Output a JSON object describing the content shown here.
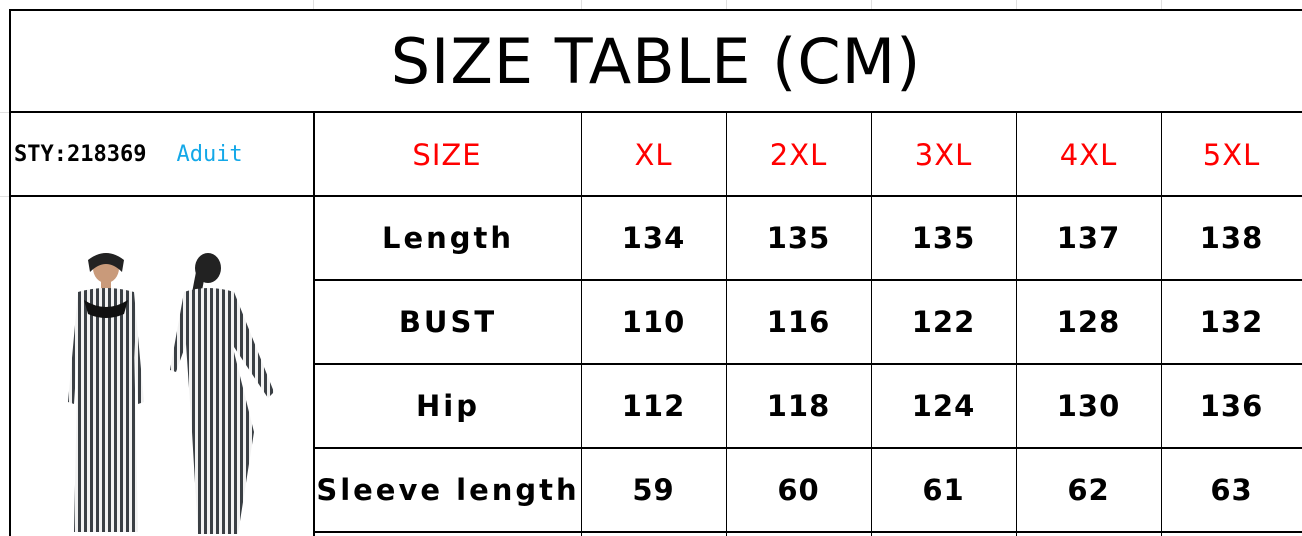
{
  "title": "SIZE TABLE (CM)",
  "style_code": "STY:218369",
  "audience": "Aduit",
  "header_label": "SIZE",
  "sizes": [
    "XL",
    "2XL",
    "3XL",
    "4XL",
    "5XL"
  ],
  "rows": [
    {
      "label": "Length",
      "values": [
        "134",
        "135",
        "135",
        "137",
        "138"
      ]
    },
    {
      "label": "BUST",
      "values": [
        "110",
        "116",
        "122",
        "128",
        "132"
      ]
    },
    {
      "label": "Hip",
      "values": [
        "112",
        "118",
        "124",
        "130",
        "136"
      ]
    },
    {
      "label": "Sleeve length",
      "values": [
        "59",
        "60",
        "61",
        "62",
        "63"
      ]
    }
  ],
  "colors": {
    "size_header": "#ff0000",
    "audience": "#13a8e8",
    "stripes": "#3a3f44"
  }
}
